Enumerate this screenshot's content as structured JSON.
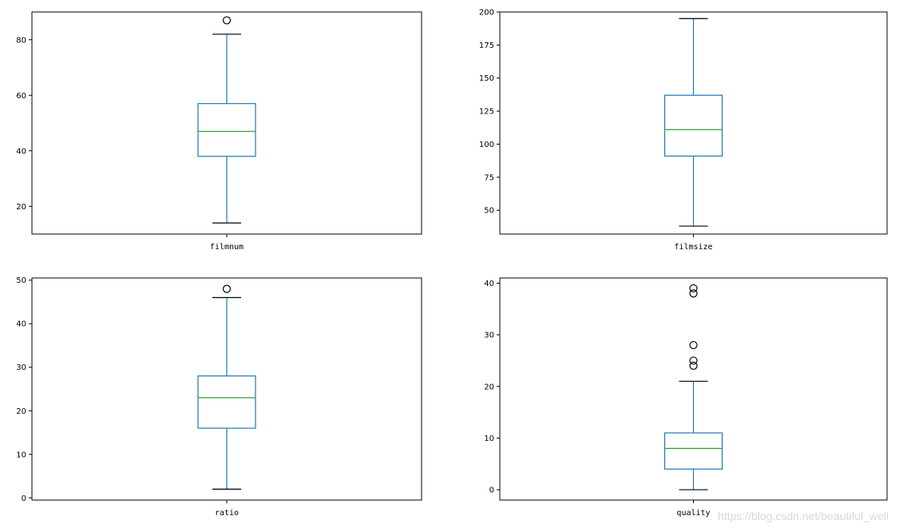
{
  "colors": {
    "box": "#1f77b4",
    "median": "#2ca02c",
    "whisker": "#1f77b4",
    "cap": "#000000",
    "flier": "#000000",
    "axes": "#000000"
  },
  "watermark": "https://blog.csdn.net/beautiful_well",
  "chart_data": [
    {
      "type": "box",
      "category": "filmnum",
      "ylim": [
        10,
        90
      ],
      "yticks": [
        20,
        40,
        60,
        80
      ],
      "stats": {
        "whislo": 14,
        "q1": 38,
        "median": 47,
        "q3": 57,
        "whishi": 82
      },
      "fliers": [
        87
      ]
    },
    {
      "type": "box",
      "category": "filmsize",
      "ylim": [
        32,
        200
      ],
      "yticks": [
        50,
        75,
        100,
        125,
        150,
        175,
        200
      ],
      "stats": {
        "whislo": 38,
        "q1": 91,
        "median": 111,
        "q3": 137,
        "whishi": 195
      },
      "fliers": []
    },
    {
      "type": "box",
      "category": "ratio",
      "ylim": [
        -0.5,
        50.5
      ],
      "yticks": [
        0,
        10,
        20,
        30,
        40,
        50
      ],
      "stats": {
        "whislo": 2,
        "q1": 16,
        "median": 23,
        "q3": 28,
        "whishi": 46
      },
      "fliers": [
        48
      ]
    },
    {
      "type": "box",
      "category": "quality",
      "ylim": [
        -2,
        41
      ],
      "yticks": [
        0,
        10,
        20,
        30,
        40
      ],
      "stats": {
        "whislo": 0,
        "q1": 4,
        "median": 8,
        "q3": 11,
        "whishi": 21
      },
      "fliers": [
        24,
        25,
        28,
        38,
        39
      ]
    }
  ]
}
